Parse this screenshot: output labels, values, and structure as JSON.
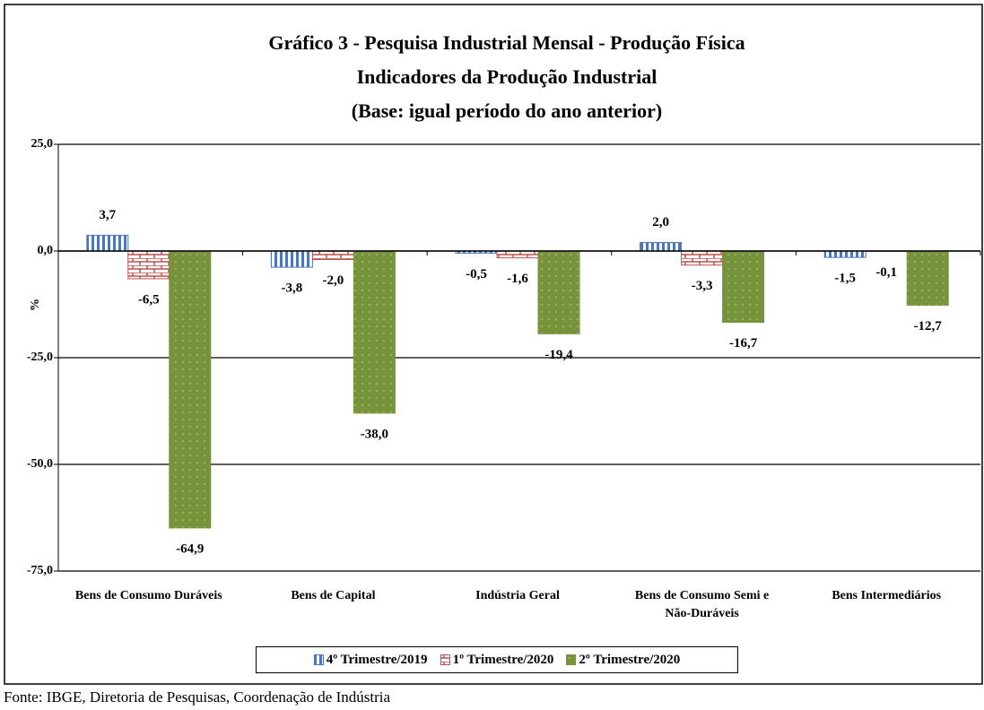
{
  "chart_data": {
    "type": "bar",
    "title": [
      "Gráfico 3 - Pesquisa Industrial Mensal - Produção Física",
      "Indicadores da Produção Industrial",
      "(Base: igual período do ano anterior)"
    ],
    "y_label": "%",
    "categories": [
      "Bens de Consumo Duráveis",
      "Bens de Capital",
      "Indústria Geral",
      "Bens de Consumo Semi e Não-Duráveis",
      "Bens Intermediários"
    ],
    "series": [
      {
        "name": "4º Trimestre/2019",
        "color": "#4f74b8",
        "values": [
          3.7,
          -3.8,
          -0.5,
          2.0,
          -1.5
        ],
        "value_labels": [
          "3,7",
          "-3,8",
          "-0,5",
          "2,0",
          "-1,5"
        ]
      },
      {
        "name": "1º Trimestre/2020",
        "color": "#c0504d",
        "values": [
          -6.5,
          -2.0,
          -1.6,
          -3.3,
          -0.1
        ],
        "value_labels": [
          "-6,5",
          "-2,0",
          "-1,6",
          "-3,3",
          "-0,1"
        ]
      },
      {
        "name": "2º Trimestre/2020",
        "color": "#77933c",
        "values": [
          -64.9,
          -38.0,
          -19.4,
          -16.7,
          -12.7
        ],
        "value_labels": [
          "-64,9",
          "-38,0",
          "-19,4",
          "-16,7",
          "-12,7"
        ]
      }
    ],
    "ylim": [
      -75,
      25
    ],
    "yticks": [
      {
        "value": 25,
        "label": "25,0"
      },
      {
        "value": 0,
        "label": "0,0"
      },
      {
        "value": -25,
        "label": "-25,0"
      },
      {
        "value": -50,
        "label": "-50,0"
      },
      {
        "value": -75,
        "label": "-75,0"
      }
    ],
    "grid": true,
    "legend": "bottom",
    "source": "Fonte: IBGE, Diretoria de Pesquisas, Coordenação de Indústria"
  }
}
